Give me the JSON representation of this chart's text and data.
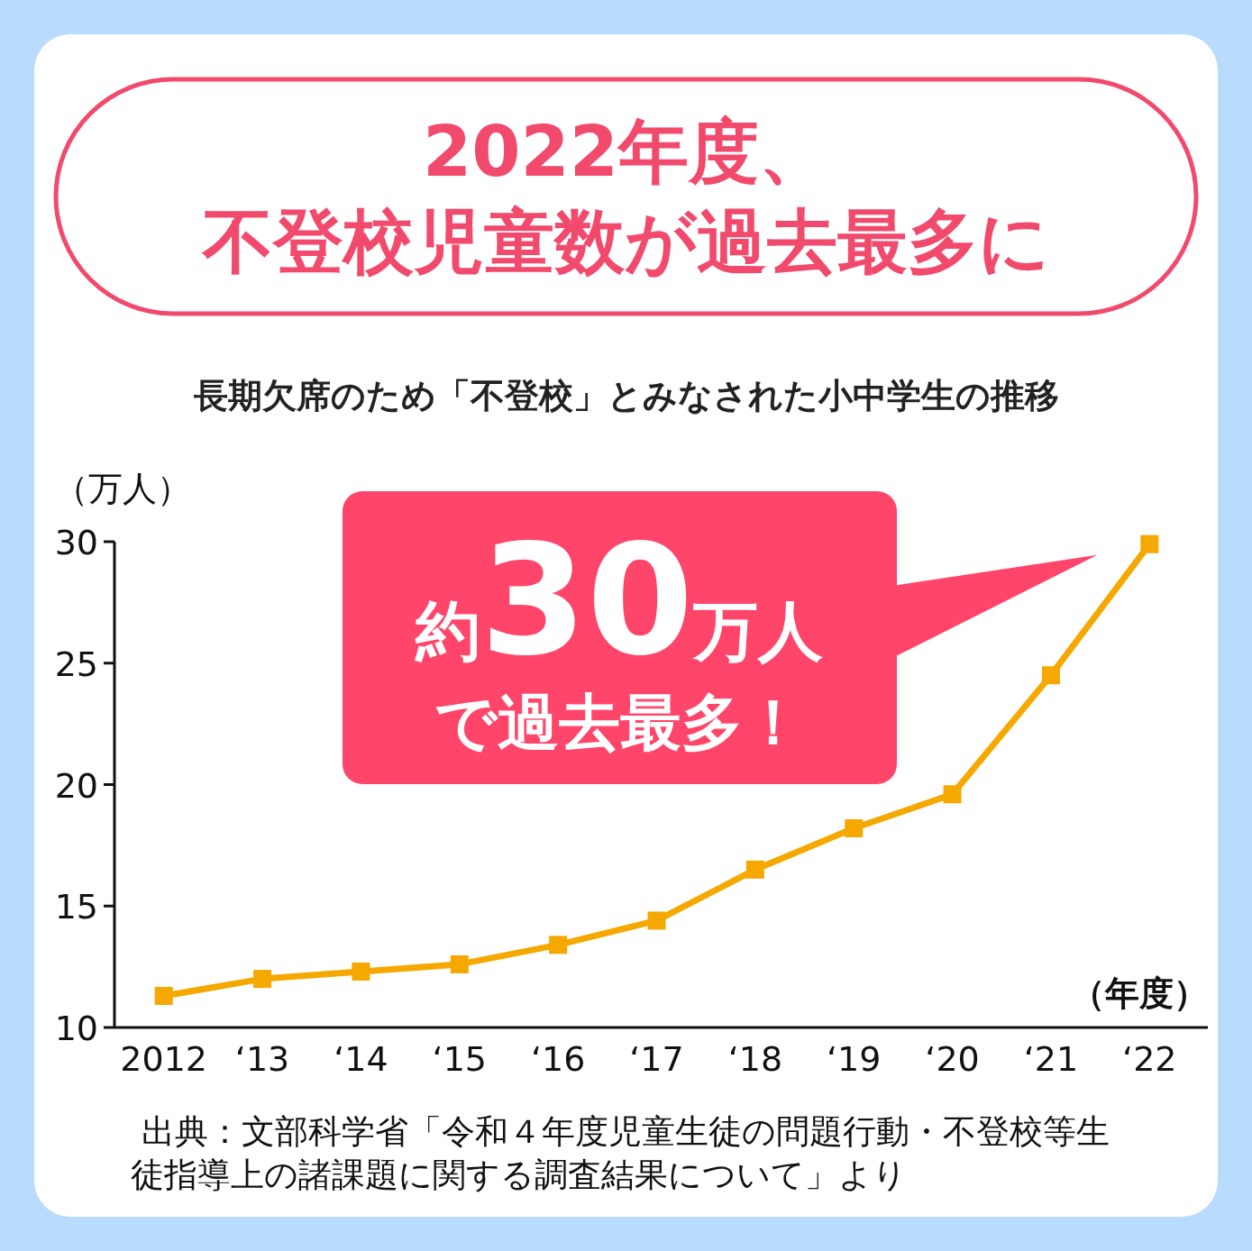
{
  "chart_data": {
    "type": "line",
    "title": "2022年度、不登校児童数が過去最多に",
    "subtitle": "長期欠席のため「不登校」とみなされた小中学生の推移",
    "ylabel": "（万人）",
    "xlabel": "（年度）",
    "categories": [
      "2012",
      "‘13",
      "‘14",
      "‘15",
      "‘16",
      "‘17",
      "‘18",
      "‘19",
      "‘20",
      "‘21",
      "‘22"
    ],
    "series": [
      {
        "color": "#f5a800",
        "values": [
          11.3,
          12.0,
          12.3,
          12.6,
          13.4,
          14.4,
          16.5,
          18.2,
          19.6,
          24.5,
          29.9
        ]
      }
    ],
    "ylim": [
      10,
      30
    ],
    "yticks": [
      10,
      15,
      20,
      25,
      30
    ],
    "grid": false,
    "marker": "square",
    "line_style": "solid",
    "annotations": [
      {
        "text": "約30万人で過去最多！",
        "x": "‘22",
        "y": 29.9
      },
      "出典：文部科学省「令和４年度児童生徒の問題行動・不登校等生徒指導上の諸課題に関する調査結果について」より"
    ]
  }
}
